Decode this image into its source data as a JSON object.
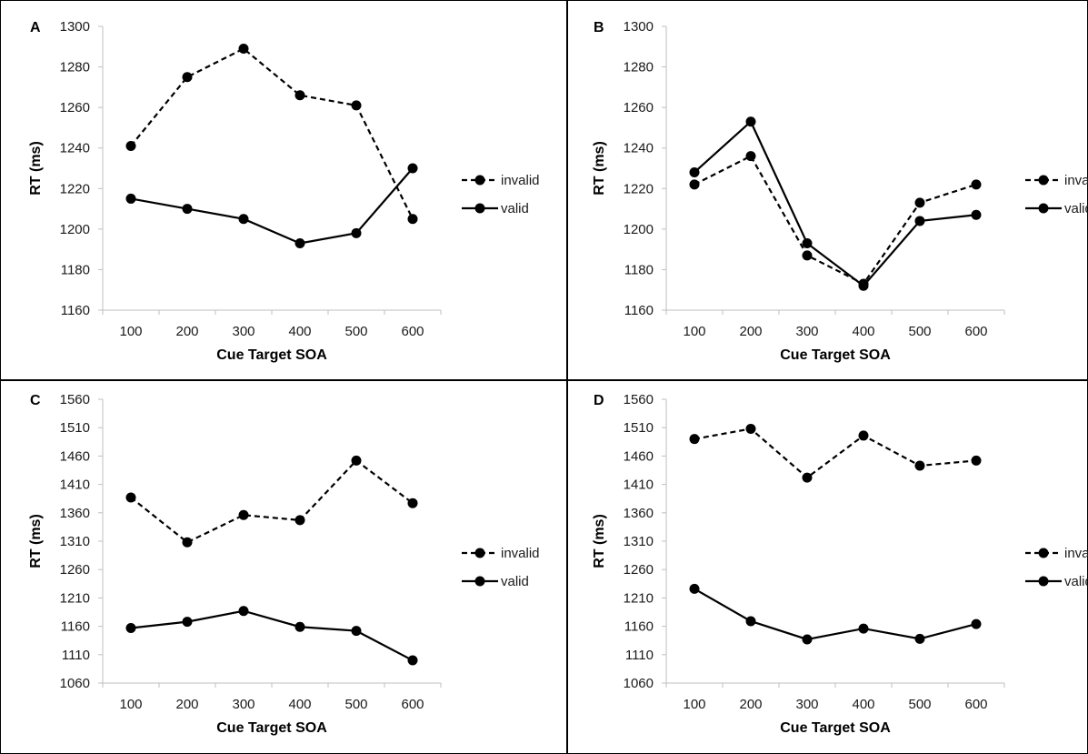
{
  "chart_data": [
    {
      "panel": "A",
      "type": "line",
      "x": [
        100,
        200,
        300,
        400,
        500,
        600
      ],
      "xlabel": "Cue Target SOA",
      "ylabel": "RT (ms)",
      "ylim": [
        1160,
        1300
      ],
      "yticks": [
        1160,
        1180,
        1200,
        1220,
        1240,
        1260,
        1280,
        1300
      ],
      "legend_position": "right",
      "series": [
        {
          "name": "invalid",
          "style": "dashed",
          "values": [
            1241,
            1275,
            1289,
            1266,
            1261,
            1205
          ]
        },
        {
          "name": "valid",
          "style": "solid",
          "values": [
            1215,
            1210,
            1205,
            1193,
            1198,
            1230
          ]
        }
      ]
    },
    {
      "panel": "B",
      "type": "line",
      "x": [
        100,
        200,
        300,
        400,
        500,
        600
      ],
      "xlabel": "Cue Target SOA",
      "ylabel": "RT (ms)",
      "ylim": [
        1160,
        1300
      ],
      "yticks": [
        1160,
        1180,
        1200,
        1220,
        1240,
        1260,
        1280,
        1300
      ],
      "legend_position": "right",
      "series": [
        {
          "name": "invalid",
          "style": "dashed",
          "values": [
            1222,
            1236,
            1187,
            1173,
            1213,
            1222
          ]
        },
        {
          "name": "valid",
          "style": "solid",
          "values": [
            1228,
            1253,
            1193,
            1172,
            1204,
            1207
          ]
        }
      ]
    },
    {
      "panel": "C",
      "type": "line",
      "x": [
        100,
        200,
        300,
        400,
        500,
        600
      ],
      "xlabel": "Cue Target SOA",
      "ylabel": "RT (ms)",
      "ylim": [
        1060,
        1560
      ],
      "yticks": [
        1060,
        1110,
        1160,
        1210,
        1260,
        1310,
        1360,
        1410,
        1460,
        1510,
        1560
      ],
      "legend_position": "right",
      "series": [
        {
          "name": "invalid",
          "style": "dashed",
          "values": [
            1387,
            1308,
            1356,
            1347,
            1452,
            1377
          ]
        },
        {
          "name": "valid",
          "style": "solid",
          "values": [
            1157,
            1168,
            1187,
            1159,
            1152,
            1100
          ]
        }
      ]
    },
    {
      "panel": "D",
      "type": "line",
      "x": [
        100,
        200,
        300,
        400,
        500,
        600
      ],
      "xlabel": "Cue Target SOA",
      "ylabel": "RT (ms)",
      "ylim": [
        1060,
        1560
      ],
      "yticks": [
        1060,
        1110,
        1160,
        1210,
        1260,
        1310,
        1360,
        1410,
        1460,
        1510,
        1560
      ],
      "legend_position": "right",
      "series": [
        {
          "name": "invalid",
          "style": "dashed",
          "values": [
            1490,
            1508,
            1422,
            1496,
            1443,
            1452
          ]
        },
        {
          "name": "valid",
          "style": "solid",
          "values": [
            1226,
            1169,
            1137,
            1156,
            1138,
            1164
          ]
        }
      ]
    }
  ],
  "colors": {
    "line": "#000000",
    "border": "#000000",
    "axis": "#bfbfbf"
  }
}
